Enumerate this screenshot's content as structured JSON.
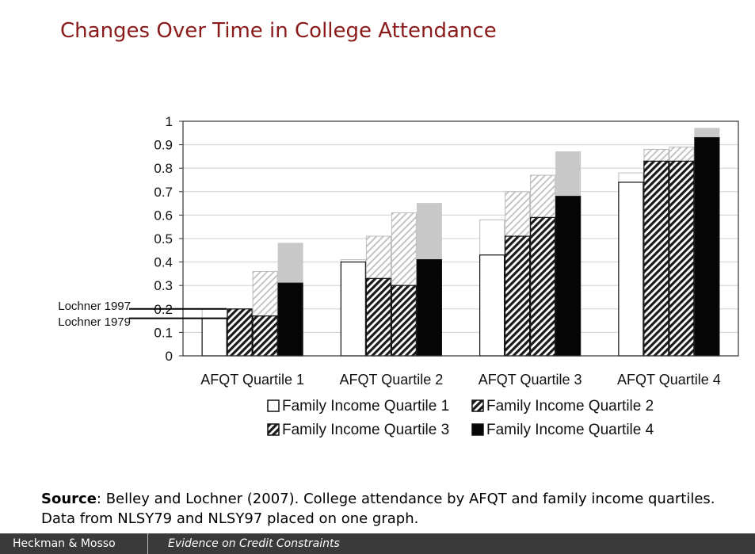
{
  "slide": {
    "title": "Changes Over Time in College Attendance",
    "source_label": "Source",
    "source_text": ": Belley and Lochner (2007). College attendance by AFQT and family income quartiles. Data from NLSY79 and NLSY97 placed on one graph."
  },
  "footer": {
    "author": "Heckman & Mosso",
    "title": "Evidence on Credit Constraints"
  },
  "chart_data": {
    "type": "bar",
    "categories": [
      "AFQT Quartile 1",
      "AFQT Quartile 2",
      "AFQT Quartile 3",
      "AFQT Quartile 4"
    ],
    "ylim": [
      0,
      1
    ],
    "yticks": [
      "0",
      "0.1",
      "0.2",
      "0.3",
      "0.4",
      "0.5",
      "0.6",
      "0.7",
      "0.8",
      "0.9",
      "1"
    ],
    "grid": true,
    "legend_position": "bottom",
    "annotations": {
      "lochner_1997": "Lochner 1997",
      "lochner_1979": "Lochner 1979"
    },
    "series": [
      {
        "name": "Family Income Quartile 1",
        "pattern": "white",
        "values_1979": [
          0.16,
          0.4,
          0.43,
          0.74
        ],
        "values_1997": [
          0.2,
          0.41,
          0.58,
          0.78
        ]
      },
      {
        "name": "Family Income Quartile 2",
        "pattern": "hatch",
        "values_1979": [
          0.2,
          0.33,
          0.51,
          0.83
        ],
        "values_1997": [
          0.2,
          0.51,
          0.7,
          0.88
        ]
      },
      {
        "name": "Family Income Quartile 3",
        "pattern": "hatch",
        "values_1979": [
          0.17,
          0.3,
          0.59,
          0.83
        ],
        "values_1997": [
          0.36,
          0.61,
          0.77,
          0.89
        ]
      },
      {
        "name": "Family Income Quartile 4",
        "pattern": "black",
        "values_1979": [
          0.31,
          0.41,
          0.68,
          0.93
        ],
        "values_1997": [
          0.48,
          0.65,
          0.87,
          0.97
        ]
      }
    ]
  }
}
